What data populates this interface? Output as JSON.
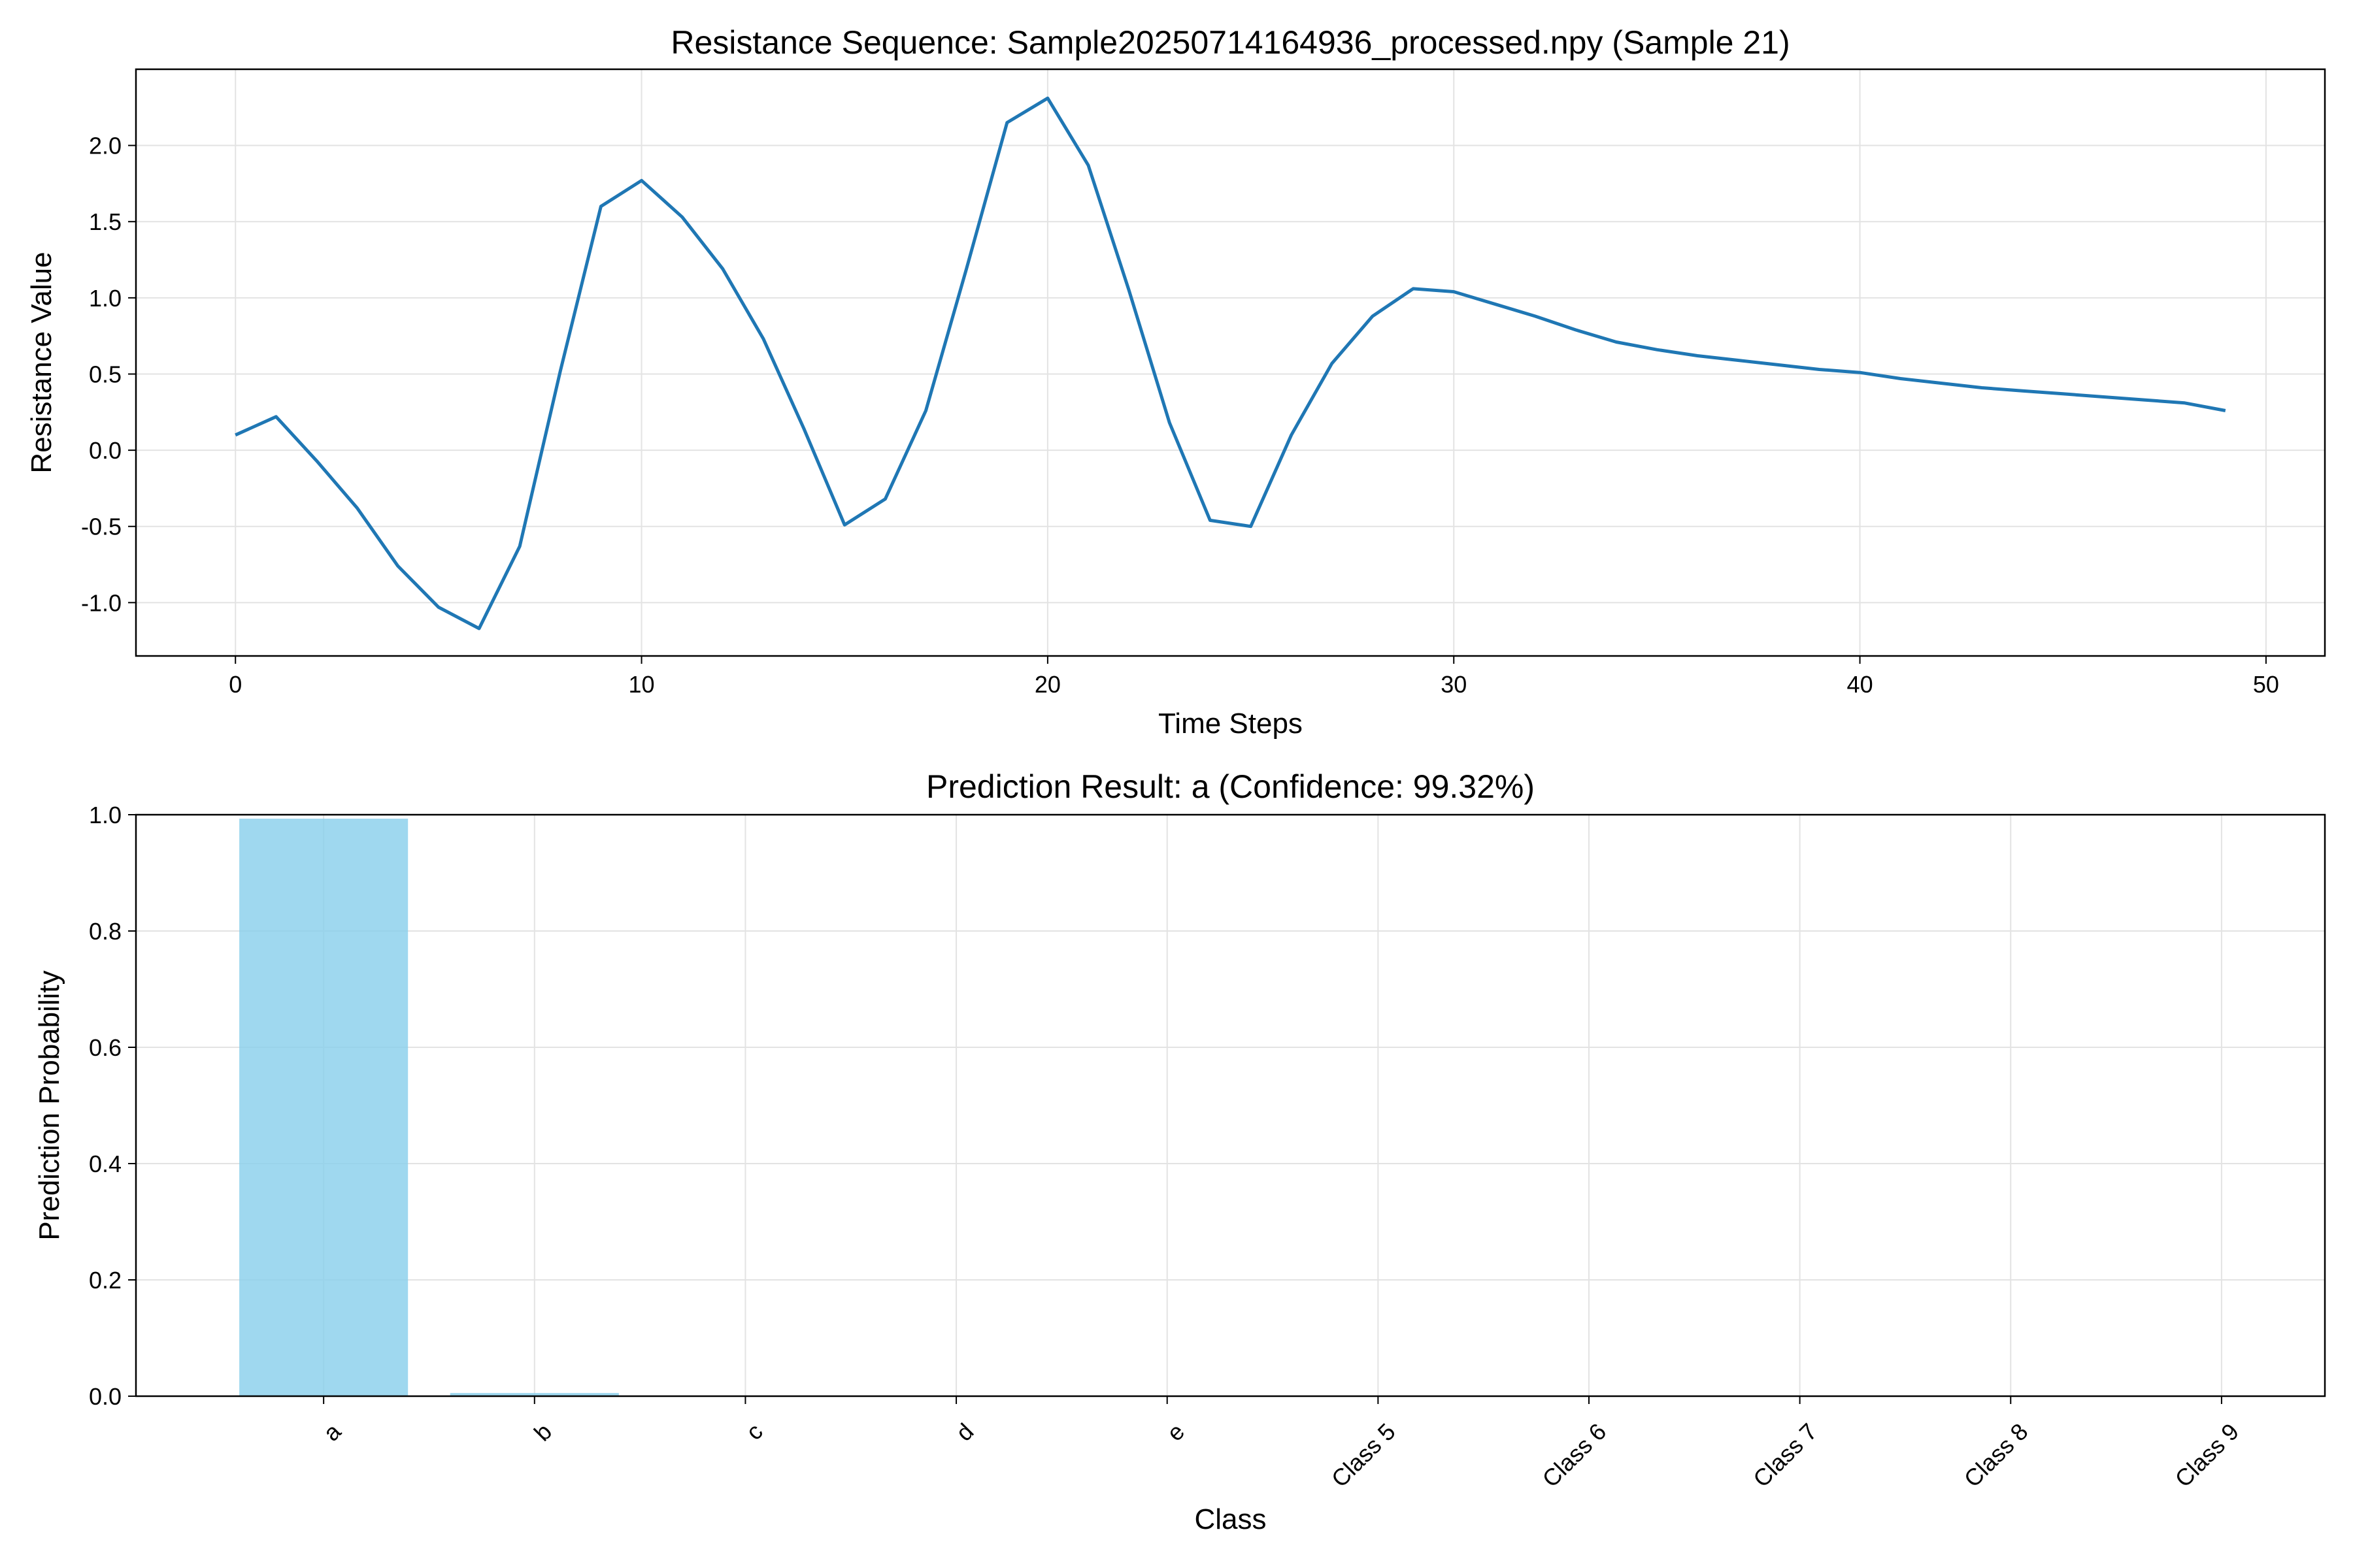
{
  "chart_data": [
    {
      "type": "line",
      "title": "Resistance Sequence: Sample20250714164936_processed.npy (Sample 21)",
      "xlabel": "Time Steps",
      "ylabel": "Resistance Value",
      "xlim": [
        -2.45,
        51.45
      ],
      "ylim": [
        -1.35,
        2.5
      ],
      "xticks": [
        0,
        10,
        20,
        30,
        40,
        50
      ],
      "yticks": [
        -1.0,
        -0.5,
        0.0,
        0.5,
        1.0,
        1.5,
        2.0
      ],
      "ytick_labels": [
        "-1.0",
        "-0.5",
        "0.0",
        "0.5",
        "1.0",
        "1.5",
        "2.0"
      ],
      "grid": true,
      "series": [
        {
          "color": "#1f77b4",
          "x": [
            0,
            1,
            2,
            3,
            4,
            5,
            6,
            7,
            8,
            9,
            10,
            11,
            12,
            13,
            14,
            15,
            16,
            17,
            18,
            19,
            20,
            21,
            22,
            23,
            24,
            25,
            26,
            27,
            28,
            29,
            30,
            31,
            32,
            33,
            34,
            35,
            36,
            37,
            38,
            39,
            40,
            41,
            42,
            43,
            44,
            45,
            46,
            47,
            48,
            49
          ],
          "y": [
            0.1,
            0.22,
            -0.07,
            -0.38,
            -0.76,
            -1.03,
            -1.17,
            -0.63,
            0.52,
            1.6,
            1.77,
            1.53,
            1.19,
            0.73,
            0.14,
            -0.49,
            -0.32,
            0.26,
            1.19,
            2.15,
            2.31,
            1.87,
            1.05,
            0.18,
            -0.46,
            -0.5,
            0.1,
            0.57,
            0.88,
            1.06,
            1.04,
            0.96,
            0.88,
            0.79,
            0.71,
            0.66,
            0.62,
            0.59,
            0.56,
            0.53,
            0.51,
            0.47,
            0.44,
            0.41,
            0.39,
            0.37,
            0.35,
            0.33,
            0.31,
            0.26
          ]
        }
      ]
    },
    {
      "type": "bar",
      "title": "Prediction Result: a (Confidence: 99.32%)",
      "xlabel": "Class",
      "ylabel": "Prediction Probability",
      "categories": [
        "a",
        "b",
        "c",
        "d",
        "e",
        "Class 5",
        "Class 6",
        "Class 7",
        "Class 8",
        "Class 9"
      ],
      "values": [
        0.9932,
        0.0055,
        0.0004,
        0.0003,
        0.0002,
        0.0001,
        0.0001,
        0.0001,
        0.0001,
        0.0
      ],
      "ylim": [
        0,
        1.0
      ],
      "yticks": [
        0.0,
        0.2,
        0.4,
        0.6,
        0.8,
        1.0
      ],
      "ytick_labels": [
        "0.0",
        "0.2",
        "0.4",
        "0.6",
        "0.8",
        "1.0"
      ],
      "bar_color": "#87ceeb",
      "grid": true
    }
  ]
}
